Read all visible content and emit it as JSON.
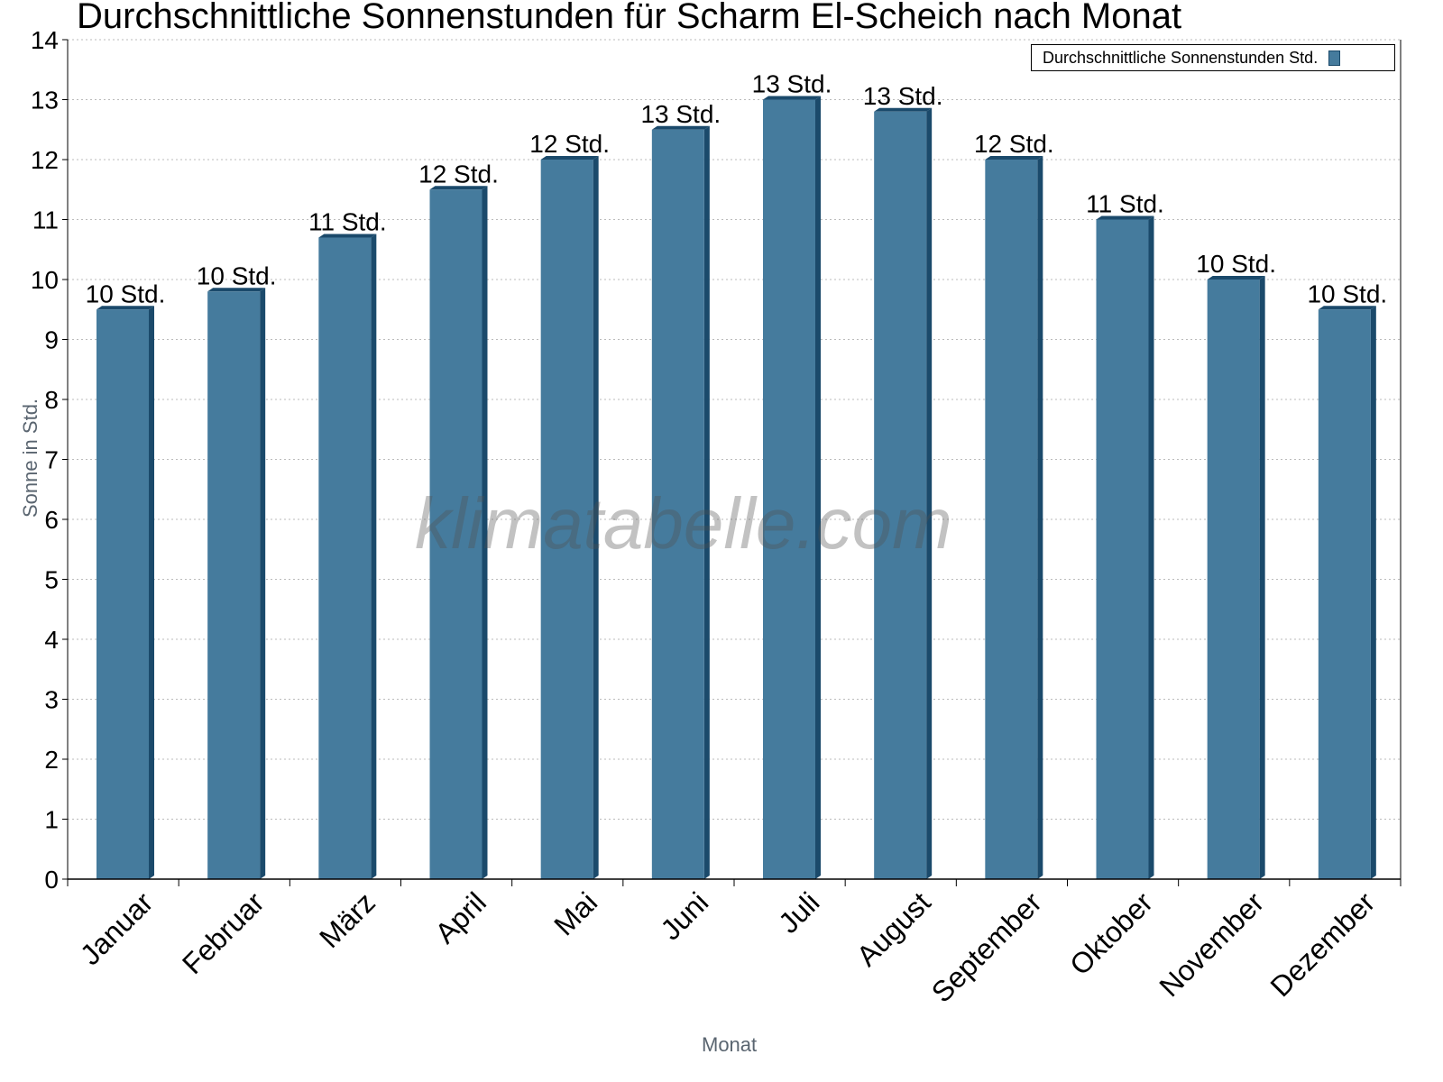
{
  "chart_data": {
    "type": "bar",
    "title": "Durchschnittliche Sonnenstunden für Scharm El-Scheich nach Monat",
    "xlabel": "Monat",
    "ylabel": "Sonne in Std.",
    "ylim": [
      0,
      14
    ],
    "yticks": [
      0,
      1,
      2,
      3,
      4,
      5,
      6,
      7,
      8,
      9,
      10,
      11,
      12,
      13,
      14
    ],
    "grid": true,
    "legend_position": "top-right",
    "categories": [
      "Januar",
      "Februar",
      "März",
      "April",
      "Mai",
      "Juni",
      "Juli",
      "August",
      "September",
      "Oktober",
      "November",
      "Dezember"
    ],
    "series": [
      {
        "name": "Durchschnittliche Sonnenstunden Std.",
        "color": "#457b9d",
        "values": [
          9.5,
          9.8,
          10.7,
          11.5,
          12.0,
          12.5,
          13.0,
          12.8,
          12.0,
          11.0,
          10.0,
          9.5
        ],
        "data_labels": [
          "10 Std.",
          "10 Std.",
          "11 Std.",
          "12 Std.",
          "12 Std.",
          "13 Std.",
          "13 Std.",
          "13 Std.",
          "12 Std.",
          "11 Std.",
          "10 Std.",
          "10 Std."
        ]
      }
    ],
    "watermark": "klimatabelle.com"
  }
}
